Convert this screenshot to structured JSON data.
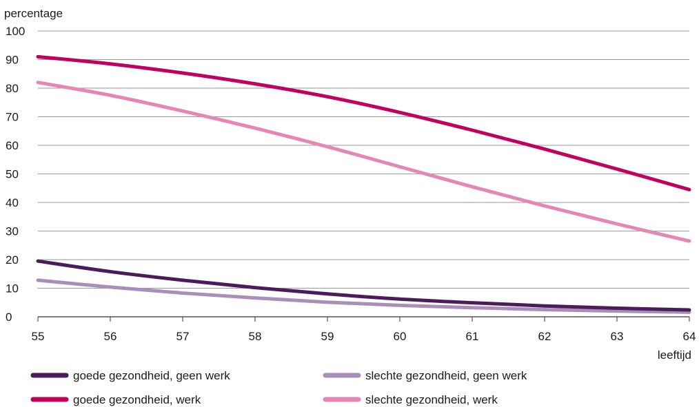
{
  "chart_data": {
    "type": "line",
    "ylabel": "percentage",
    "xlabel": "leeftijd",
    "xlim": [
      55,
      64
    ],
    "ylim": [
      0,
      100
    ],
    "x_ticks": [
      "55",
      "56",
      "57",
      "58",
      "59",
      "60",
      "61",
      "62",
      "63",
      "64"
    ],
    "y_ticks": [
      "0",
      "10",
      "20",
      "30",
      "40",
      "50",
      "60",
      "70",
      "80",
      "90",
      "100"
    ],
    "grid": true,
    "legend_position": "bottom",
    "x": [
      55,
      56,
      57,
      58,
      59,
      60,
      61,
      62,
      63,
      64
    ],
    "series": [
      {
        "name": "goede gezondheid, geen werk",
        "color": "#4b1c5c",
        "values": [
          19.5,
          15.8,
          12.8,
          10.2,
          8.0,
          6.2,
          4.9,
          3.8,
          3.0,
          2.4
        ]
      },
      {
        "name": "goede gezondheid, werk",
        "color": "#c2005f",
        "values": [
          91.0,
          88.5,
          85.3,
          81.5,
          77.0,
          71.5,
          65.3,
          58.7,
          51.7,
          44.5
        ]
      },
      {
        "name": "slechte gezondheid, geen werk",
        "color": "#a98fb8",
        "values": [
          12.8,
          10.4,
          8.3,
          6.6,
          5.1,
          4.0,
          3.2,
          2.5,
          2.0,
          1.6
        ]
      },
      {
        "name": "slechte gezondheid, werk",
        "color": "#e686b4",
        "values": [
          82.0,
          77.5,
          72.0,
          66.0,
          59.5,
          52.5,
          45.5,
          38.8,
          32.5,
          26.5
        ]
      }
    ]
  }
}
